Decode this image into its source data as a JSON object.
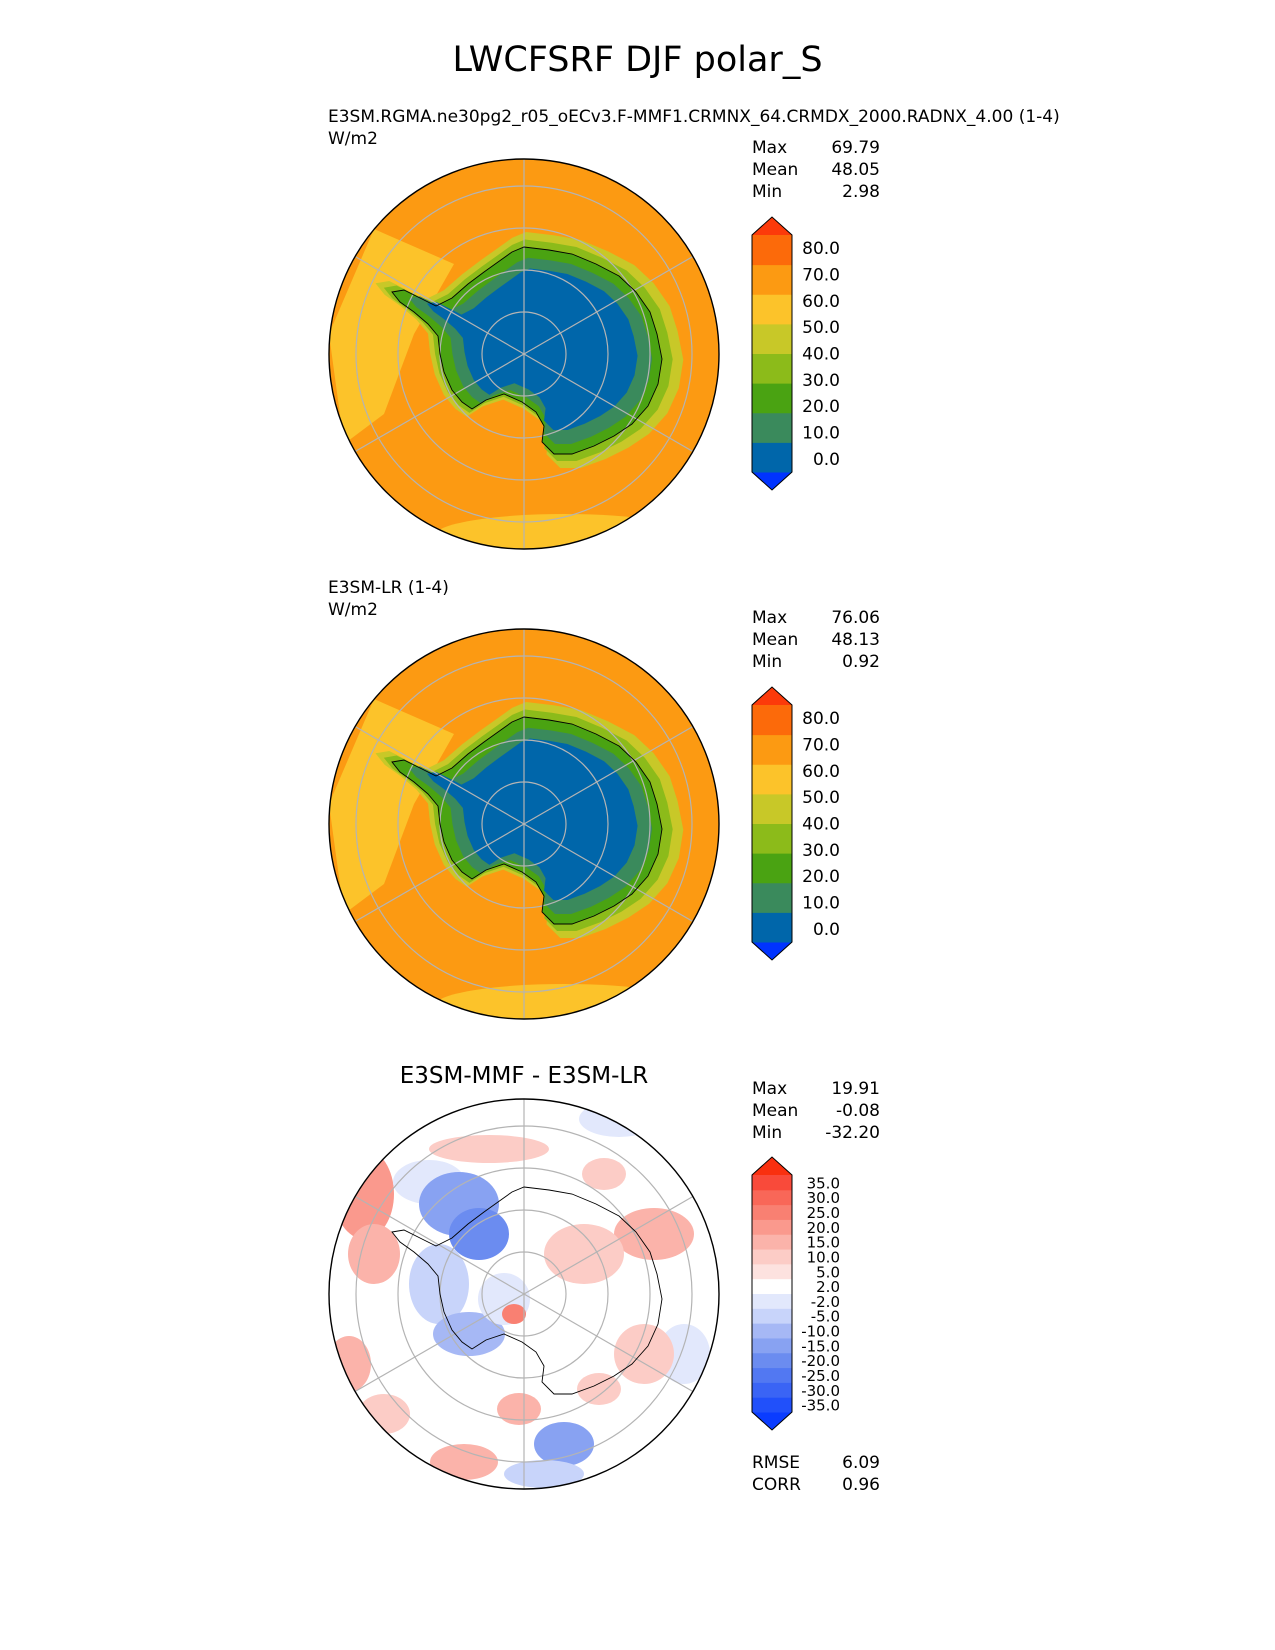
{
  "title": "LWCFSRF DJF polar_S",
  "chart_data": [
    {
      "type": "heatmap",
      "projection": "south-polar-stereographic",
      "title": "E3SM.RGMA.ne30pg2_r05_oECv3.F-MMF1.CRMNX_64.CRMDX_2000.RADNX_4.00 (1-4)",
      "units": "W/m2",
      "stats": [
        {
          "label": "Max",
          "value": "69.79"
        },
        {
          "label": "Mean",
          "value": "48.05"
        },
        {
          "label": "Min",
          "value": "2.98"
        }
      ],
      "colorbar": {
        "ticks": [
          "80.0",
          "70.0",
          "60.0",
          "50.0",
          "40.0",
          "30.0",
          "20.0",
          "10.0",
          "0.0"
        ],
        "colors": [
          "#0033ff",
          "#0066aa",
          "#3a8a5c",
          "#4aa312",
          "#8cbb1a",
          "#c8c828",
          "#fcc32a",
          "#fc9a12",
          "#fc6a0a",
          "#fc3a0a"
        ],
        "extend": "both"
      },
      "field": {
        "ocean": "#fc9a12",
        "ocean_band": "#fcc32a",
        "continent_rim": [
          "#c8c828",
          "#8cbb1a",
          "#4aa312",
          "#3a8a5c"
        ],
        "continent_core": "#0066aa"
      }
    },
    {
      "type": "heatmap",
      "projection": "south-polar-stereographic",
      "title": "E3SM-LR (1-4)",
      "units": "W/m2",
      "stats": [
        {
          "label": "Max",
          "value": "76.06"
        },
        {
          "label": "Mean",
          "value": "48.13"
        },
        {
          "label": "Min",
          "value": "0.92"
        }
      ],
      "colorbar": {
        "ticks": [
          "80.0",
          "70.0",
          "60.0",
          "50.0",
          "40.0",
          "30.0",
          "20.0",
          "10.0",
          "0.0"
        ],
        "colors": [
          "#0033ff",
          "#0066aa",
          "#3a8a5c",
          "#4aa312",
          "#8cbb1a",
          "#c8c828",
          "#fcc32a",
          "#fc9a12",
          "#fc6a0a",
          "#fc3a0a"
        ],
        "extend": "both"
      },
      "field": {
        "ocean": "#fc9a12",
        "ocean_band": "#fcc32a",
        "continent_rim": [
          "#c8c828",
          "#8cbb1a",
          "#4aa312",
          "#3a8a5c"
        ],
        "continent_core": "#0066aa"
      }
    },
    {
      "type": "heatmap",
      "projection": "south-polar-stereographic",
      "title": "E3SM-MMF - E3SM-LR",
      "units": "",
      "stats": [
        {
          "label": "Max",
          "value": "19.91"
        },
        {
          "label": "Mean",
          "value": "-0.08"
        },
        {
          "label": "Min",
          "value": "-32.20"
        }
      ],
      "colorbar": {
        "ticks": [
          "35.0",
          "30.0",
          "25.0",
          "20.0",
          "15.0",
          "10.0",
          "5.0",
          "2.0",
          "-2.0",
          "-5.0",
          "-10.0",
          "-15.0",
          "-20.0",
          "-25.0",
          "-30.0",
          "-35.0"
        ],
        "colors": [
          "#0a3cff",
          "#2150fa",
          "#3a64f5",
          "#5278f2",
          "#6b8cf0",
          "#88a2f2",
          "#a6b8f5",
          "#c8d4fa",
          "#e2e8fc",
          "#ffffff",
          "#fde2df",
          "#fcccc6",
          "#fbb3aa",
          "#fa998d",
          "#f98072",
          "#f96758",
          "#f94a3a",
          "#f9300f"
        ],
        "extend": "both"
      },
      "footer": [
        {
          "label": "RMSE",
          "value": "6.09"
        },
        {
          "label": "CORR",
          "value": "0.96"
        }
      ]
    }
  ]
}
